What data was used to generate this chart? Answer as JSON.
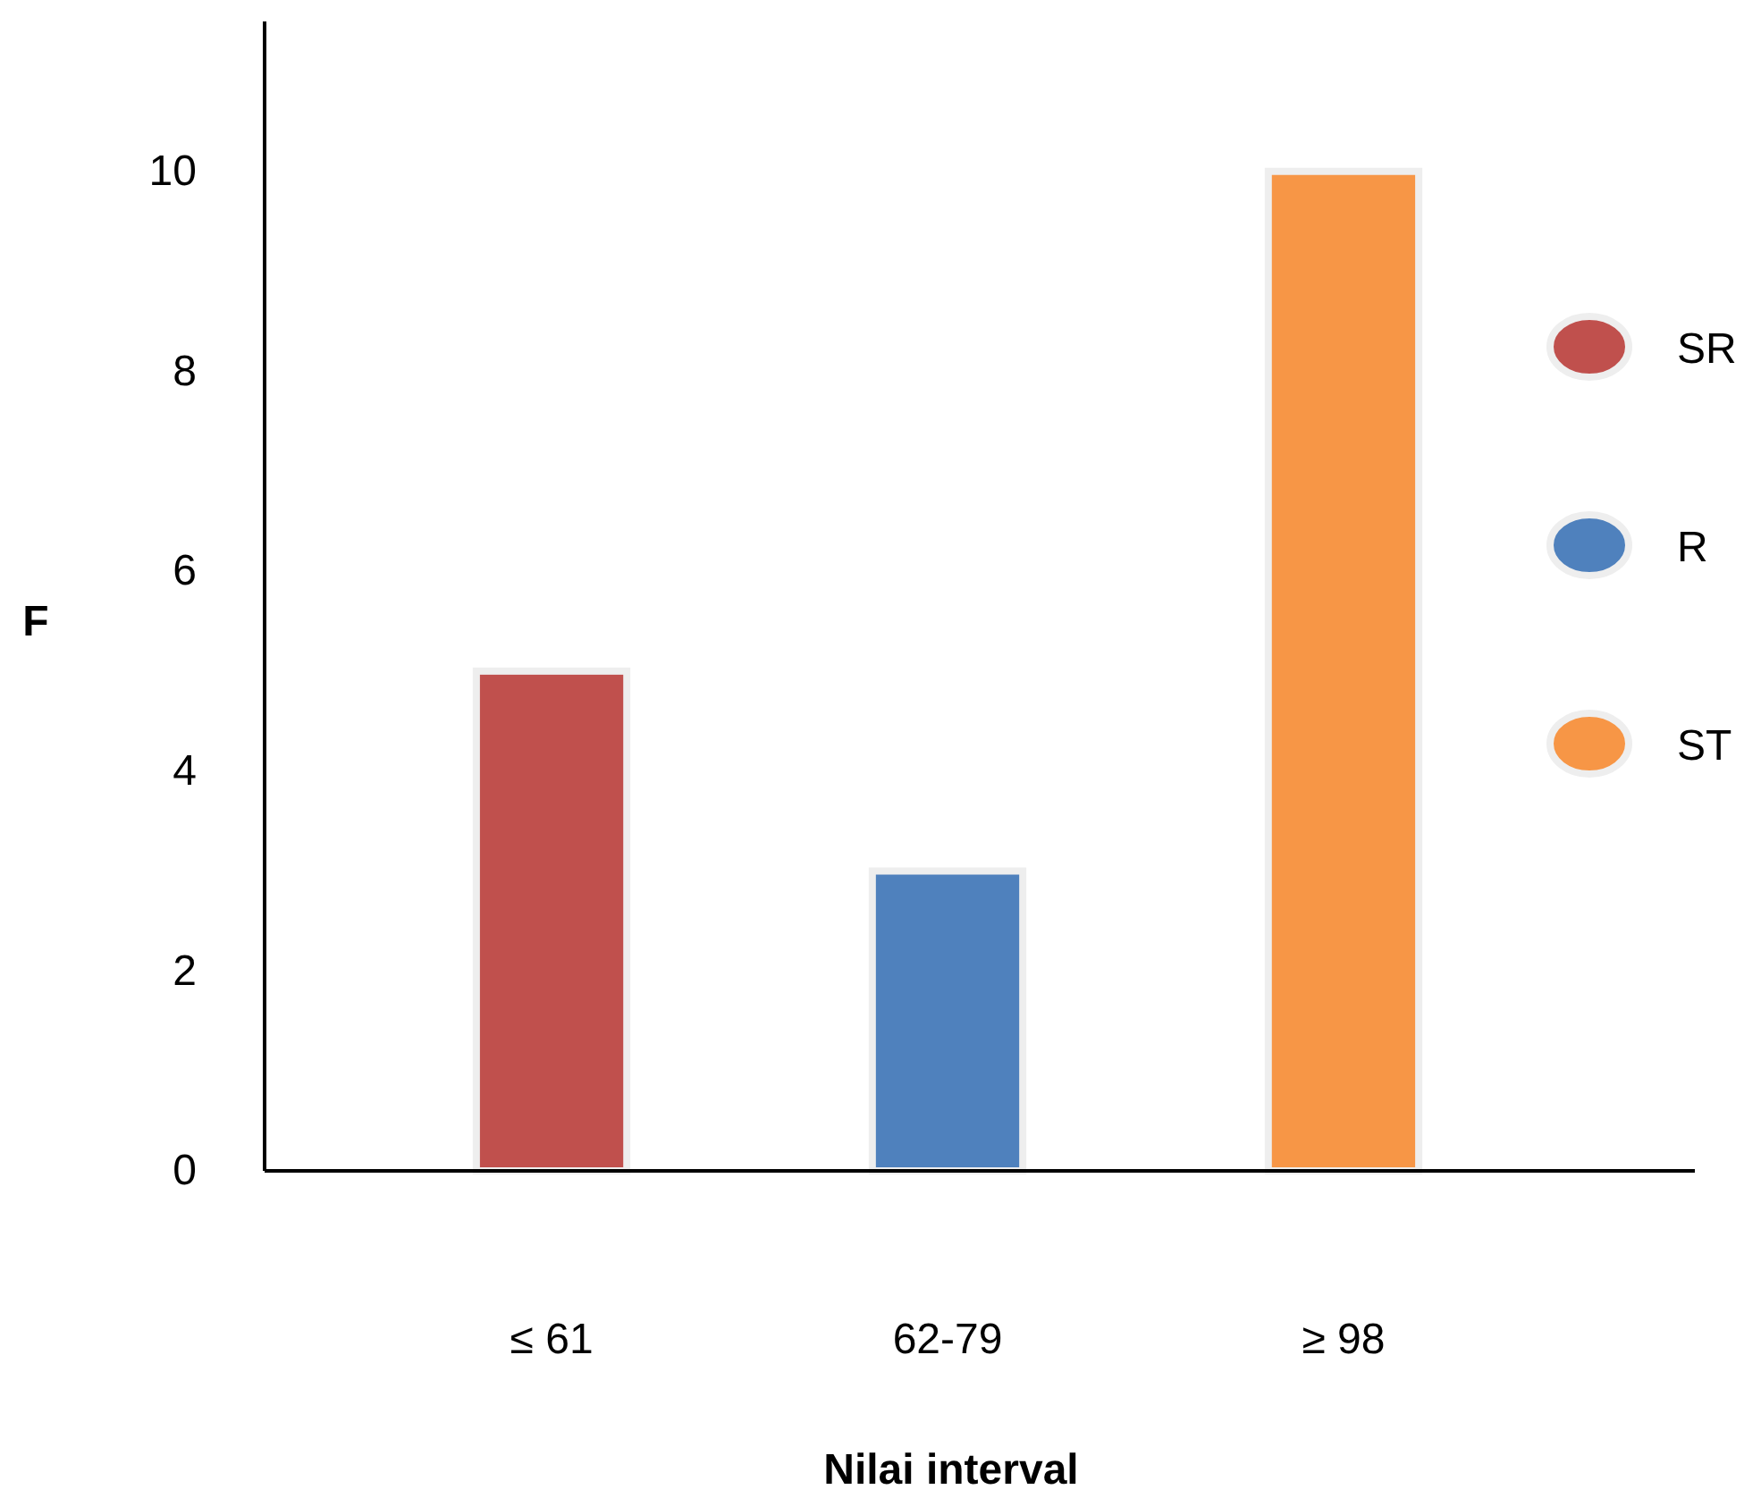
{
  "chart_data": {
    "type": "bar",
    "xlabel": "Nilai interval",
    "ylabel": "F",
    "categories": [
      "≤ 61",
      "62-79",
      "≥ 98"
    ],
    "series": [
      {
        "name": "SR",
        "color": "#c0504d",
        "values": [
          5,
          null,
          null
        ]
      },
      {
        "name": "R",
        "color": "#4f81bd",
        "values": [
          null,
          3,
          null
        ]
      },
      {
        "name": "ST",
        "color": "#f79646",
        "values": [
          null,
          null,
          10
        ]
      }
    ],
    "stacked": true,
    "ylim": [
      0,
      11.5
    ],
    "yticks": [
      0,
      2,
      4,
      6,
      8,
      10
    ],
    "grid": false,
    "legend": "right"
  }
}
